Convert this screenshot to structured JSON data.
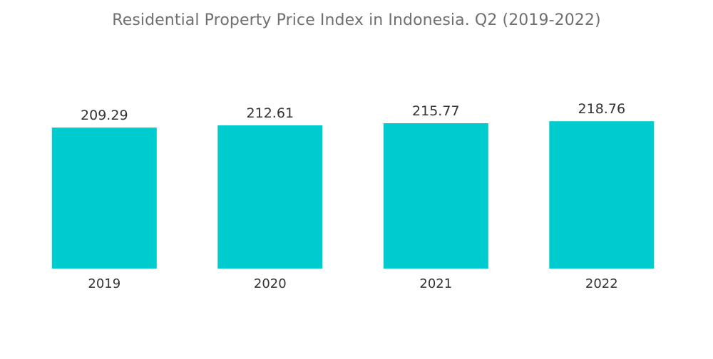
{
  "chart_data": {
    "type": "bar",
    "title": "Residential Property Price Index in Indonesia. Q2 (2019-2022)",
    "categories": [
      "2019",
      "2020",
      "2021",
      "2022"
    ],
    "values": [
      209.29,
      212.61,
      215.77,
      218.76
    ],
    "value_labels": [
      "209.29",
      "212.61",
      "215.77",
      "218.76"
    ],
    "ylim": [
      0,
      220
    ],
    "grid": false,
    "colors": {
      "bar": "#00cccf"
    }
  }
}
